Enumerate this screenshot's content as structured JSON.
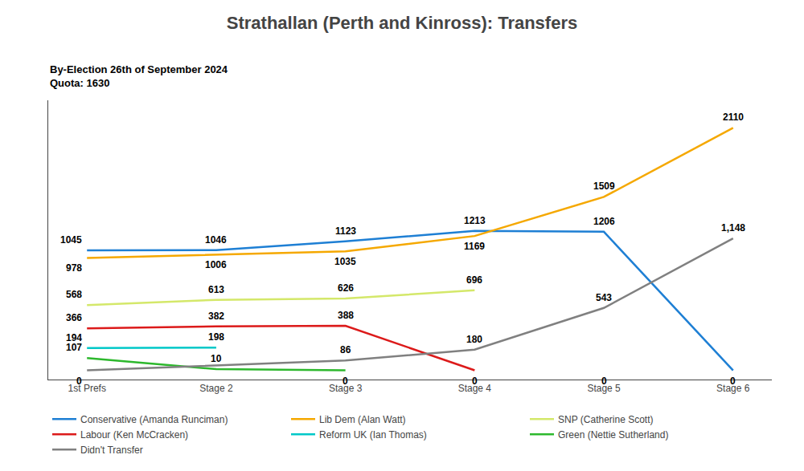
{
  "chart_data": {
    "type": "line",
    "title": "Strathallan (Perth and Kinross): Transfers",
    "subtitle": [
      "By-Election 26th of September 2024",
      "Quota: 1630"
    ],
    "categories": [
      "1st Prefs",
      "Stage 2",
      "Stage 3",
      "Stage 4",
      "Stage 5",
      "Stage 6"
    ],
    "series": [
      {
        "name": "Conservative (Amanda Runciman)",
        "color": "#1e7fd4",
        "values": [
          1045,
          1046,
          1123,
          1213,
          1206,
          0
        ]
      },
      {
        "name": "Lib Dem (Alan Watt)",
        "color": "#f5a800",
        "values": [
          978,
          1006,
          1035,
          1169,
          1509,
          2110
        ]
      },
      {
        "name": "SNP (Catherine Scott)",
        "color": "#d4e86a",
        "values": [
          568,
          613,
          626,
          696,
          null,
          null
        ]
      },
      {
        "name": "Labour (Ken McCracken)",
        "color": "#dc1a1a",
        "values": [
          366,
          382,
          388,
          0,
          null,
          null
        ]
      },
      {
        "name": "Reform UK (Ian Thomas)",
        "color": "#00c8c8",
        "values": [
          194,
          198,
          null,
          null,
          null,
          null
        ]
      },
      {
        "name": "Green (Nettie Sutherland)",
        "color": "#2db82d",
        "values": [
          107,
          10,
          0,
          null,
          null,
          null
        ]
      },
      {
        "name": "Didn't Transfer",
        "color": "#808080",
        "values": [
          0,
          null,
          86,
          180,
          543,
          1148
        ],
        "value_labels": [
          "0",
          null,
          "86",
          "180",
          "543",
          "1,148"
        ]
      }
    ],
    "annotations": [
      {
        "x": "Stage 5",
        "y": 0,
        "text": "0"
      }
    ],
    "ylim": [
      -80,
      2350
    ],
    "tick_labels": "x",
    "grid": false,
    "legend": "bottom",
    "data_labels": true
  }
}
